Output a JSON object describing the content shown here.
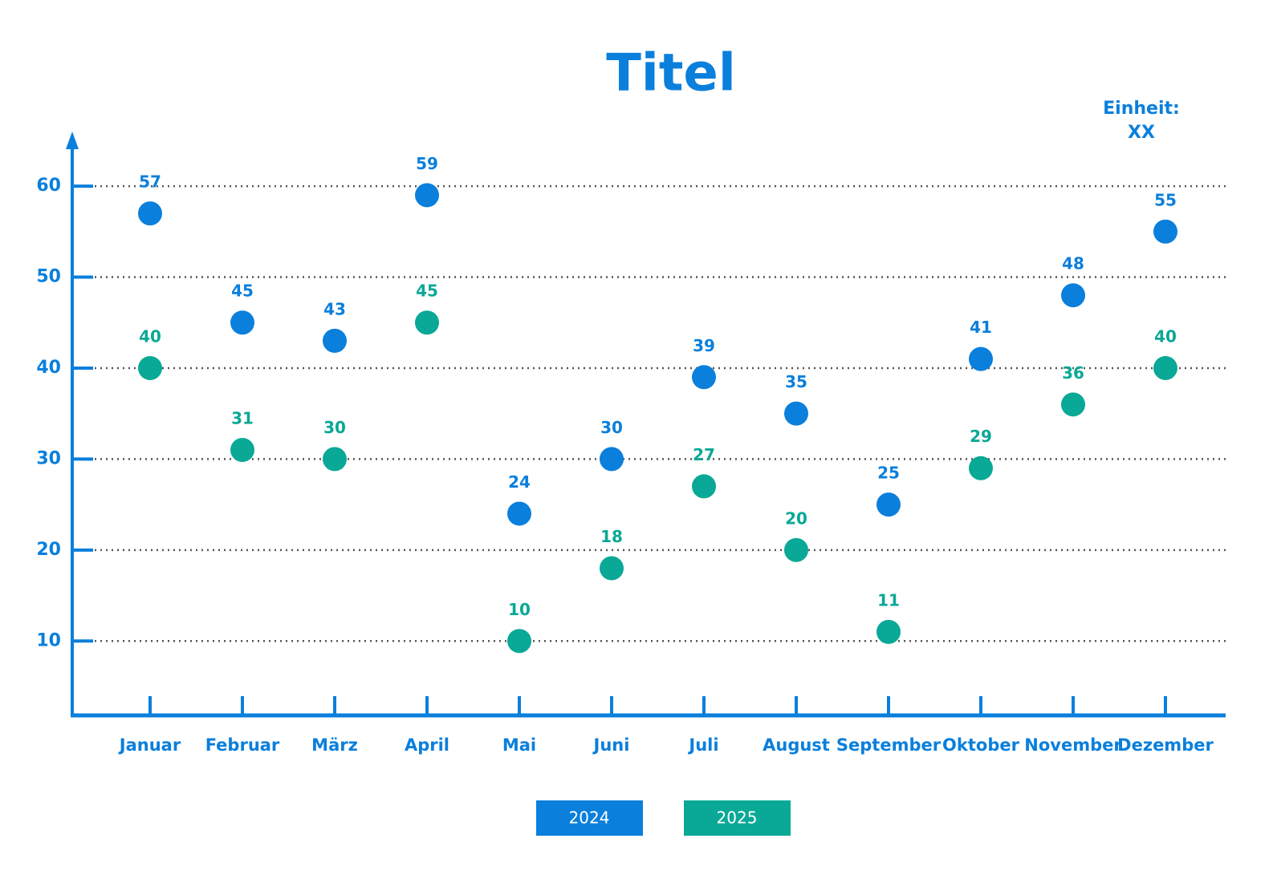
{
  "chart_data": {
    "type": "line",
    "title": "Titel",
    "annotations": [
      "Einheit:",
      "XX"
    ],
    "categories": [
      "Januar",
      "Februar",
      "März",
      "April",
      "Mai",
      "Juni",
      "Juli",
      "August",
      "September",
      "Oktober",
      "November",
      "Dezember"
    ],
    "series": [
      {
        "name": "2024",
        "color": "#0a7fdc",
        "values": [
          57,
          45,
          43,
          59,
          24,
          30,
          39,
          35,
          25,
          41,
          48,
          55
        ]
      },
      {
        "name": "2025",
        "color": "#0aa896",
        "values": [
          40,
          31,
          30,
          45,
          10,
          18,
          27,
          20,
          11,
          29,
          36,
          40
        ]
      }
    ],
    "ylim": [
      2,
      66
    ],
    "yticks": [
      10,
      20,
      30,
      40,
      50,
      60
    ],
    "grid": true,
    "legend": "bottom"
  }
}
